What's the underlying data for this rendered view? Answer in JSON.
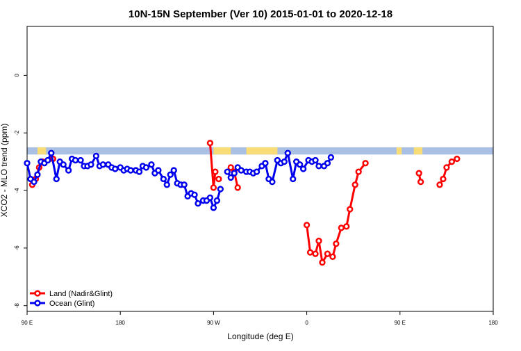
{
  "chart_data": {
    "type": "line",
    "title": "10N-15N September (Ver 10)   2015-01-01 to 2020-12-18",
    "xlabel": "Longitude (deg E)",
    "ylabel": "XCO2 - MLO trend (ppm)",
    "xlim": [
      -90,
      180
    ],
    "ylim": [
      -8.2,
      1.7
    ],
    "xticks": [
      -90,
      -36,
      18,
      72,
      126,
      180
    ],
    "xtick_labels": [
      "90 E",
      "180",
      "90 W",
      "0",
      "90 E",
      "180"
    ],
    "yticks": [
      0,
      -2,
      -4,
      -6,
      -8
    ],
    "ytick_labels": [
      "0",
      "-2",
      "-4",
      "-6",
      "-8"
    ],
    "grid": false,
    "legend_position": "bottom-left",
    "colors": {
      "land": "#ff0000",
      "ocean": "#0000ee",
      "band": "#a9bfe3",
      "land_mask": "#f7dc78"
    },
    "land_band_y": [
      -2.5,
      -2.75
    ],
    "land_mask_ranges": [
      [
        -84,
        -79
      ],
      [
        18,
        28
      ],
      [
        37,
        55
      ],
      [
        124,
        127
      ],
      [
        134,
        139
      ]
    ],
    "series": [
      {
        "name": "Land (Nadir&Glint)",
        "segments": [
          [
            [
              -87,
              -3.8
            ],
            [
              -85,
              -3.6
            ],
            [
              -83,
              -3.2
            ],
            [
              -81,
              -3.0
            ]
          ],
          [
            [
              -75,
              -2.9
            ]
          ],
          [
            [
              16,
              -2.35
            ],
            [
              18,
              -3.9
            ],
            [
              19,
              -3.35
            ]
          ],
          [
            [
              28,
              -3.2
            ],
            [
              30,
              -3.35
            ],
            [
              32,
              -3.9
            ]
          ],
          [
            [
              21,
              -3.6
            ]
          ],
          [
            [
              72,
              -5.2
            ],
            [
              74,
              -6.15
            ],
            [
              77,
              -6.2
            ],
            [
              79,
              -5.75
            ],
            [
              81,
              -6.5
            ],
            [
              84,
              -6.2
            ],
            [
              87,
              -6.3
            ],
            [
              89,
              -5.85
            ],
            [
              92,
              -5.3
            ],
            [
              95,
              -5.25
            ],
            [
              97,
              -4.65
            ],
            [
              100,
              -3.8
            ],
            [
              102,
              -3.35
            ],
            [
              106,
              -3.05
            ]
          ],
          [
            [
              137,
              -3.4
            ],
            [
              138,
              -3.7
            ]
          ],
          [
            [
              149,
              -3.8
            ],
            [
              151,
              -3.6
            ],
            [
              153,
              -3.2
            ],
            [
              156,
              -3.0
            ]
          ],
          [
            [
              159,
              -2.9
            ]
          ]
        ]
      },
      {
        "name": "Ocean (Glint)",
        "segments": [
          [
            [
              -90,
              -3.05
            ],
            [
              -88,
              -3.6
            ],
            [
              -86,
              -3.7
            ],
            [
              -84,
              -3.45
            ],
            [
              -82,
              -3.0
            ],
            [
              -80,
              -3.05
            ],
            [
              -78,
              -2.95
            ],
            [
              -76,
              -2.7
            ],
            [
              -73,
              -3.6
            ],
            [
              -71,
              -3.0
            ],
            [
              -69,
              -3.1
            ],
            [
              -66,
              -3.3
            ],
            [
              -64,
              -2.9
            ],
            [
              -62,
              -2.95
            ],
            [
              -59,
              -2.95
            ],
            [
              -57,
              -3.15
            ],
            [
              -55,
              -3.15
            ],
            [
              -53,
              -3.1
            ],
            [
              -50,
              -2.8
            ],
            [
              -48,
              -3.15
            ],
            [
              -46,
              -3.1
            ],
            [
              -43,
              -3.1
            ],
            [
              -41,
              -3.2
            ],
            [
              -39,
              -3.25
            ],
            [
              -36,
              -3.2
            ],
            [
              -34,
              -3.3
            ],
            [
              -32,
              -3.25
            ],
            [
              -30,
              -3.3
            ],
            [
              -27,
              -3.3
            ],
            [
              -25,
              -3.35
            ],
            [
              -23,
              -3.15
            ],
            [
              -21,
              -3.2
            ],
            [
              -18,
              -3.1
            ],
            [
              -16,
              -3.4
            ],
            [
              -14,
              -3.3
            ],
            [
              -11,
              -3.6
            ],
            [
              -9,
              -3.8
            ],
            [
              -7,
              -3.45
            ],
            [
              -5,
              -3.3
            ],
            [
              -3,
              -3.75
            ],
            [
              -1,
              -3.8
            ],
            [
              1,
              -3.8
            ],
            [
              3,
              -4.2
            ],
            [
              5,
              -4.1
            ],
            [
              7,
              -4.15
            ],
            [
              9,
              -4.45
            ],
            [
              12,
              -4.35
            ],
            [
              14,
              -4.35
            ],
            [
              16,
              -4.25
            ],
            [
              18,
              -4.6
            ],
            [
              20,
              -4.35
            ],
            [
              22,
              -3.95
            ]
          ],
          [
            [
              26,
              -3.35
            ],
            [
              28,
              -3.55
            ],
            [
              30,
              -3.4
            ],
            [
              32,
              -3.2
            ],
            [
              34,
              -3.3
            ],
            [
              37,
              -3.35
            ],
            [
              39,
              -3.35
            ],
            [
              41,
              -3.4
            ],
            [
              43,
              -3.35
            ],
            [
              46,
              -3.15
            ],
            [
              48,
              -3.05
            ],
            [
              50,
              -3.6
            ],
            [
              52,
              -3.7
            ],
            [
              55,
              -2.95
            ],
            [
              57,
              -3.05
            ],
            [
              59,
              -3.0
            ],
            [
              61,
              -2.7
            ],
            [
              64,
              -3.6
            ],
            [
              66,
              -3.0
            ],
            [
              68,
              -3.1
            ],
            [
              70,
              -3.25
            ],
            [
              73,
              -2.95
            ],
            [
              75,
              -3.0
            ],
            [
              77,
              -2.95
            ],
            [
              79,
              -3.15
            ],
            [
              82,
              -3.15
            ],
            [
              84,
              -3.05
            ],
            [
              86,
              -2.85
            ]
          ]
        ]
      }
    ]
  }
}
